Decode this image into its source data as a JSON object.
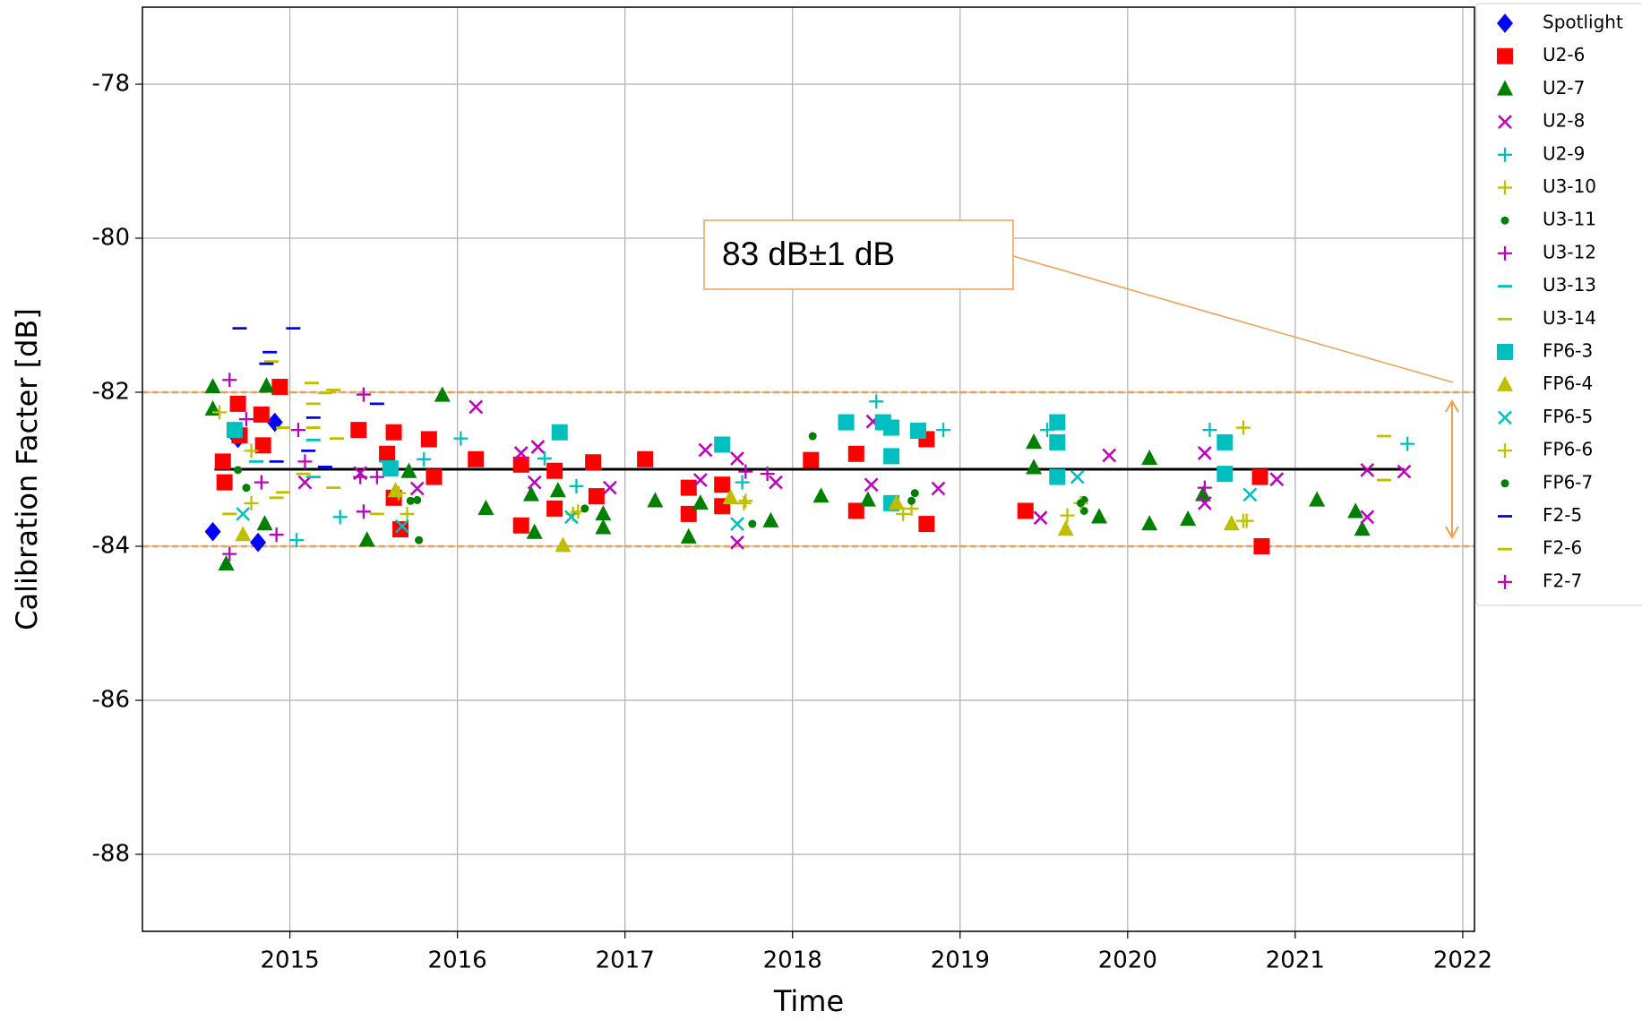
{
  "chart_data": {
    "type": "scatter",
    "xlabel": "Time",
    "ylabel": "Calibration Facter [dB]",
    "xlim": [
      2014.12,
      2022.07
    ],
    "xticks": [
      2015,
      2016,
      2017,
      2018,
      2019,
      2020,
      2021,
      2022
    ],
    "ylim": [
      -89,
      -77
    ],
    "yticks": [
      -88,
      -86,
      -84,
      -82,
      -80,
      -78
    ],
    "grid": true,
    "legend": "outside right",
    "reference_line": {
      "y": -83,
      "x": [
        2014.55,
        2021.65
      ],
      "color": "#000000"
    },
    "band": {
      "y": [
        -84,
        -82
      ],
      "color": "#f0a050"
    },
    "annotation": {
      "text": "83 dB±1 dB",
      "color": "#f0a050"
    },
    "series": [
      {
        "name": "Spotlight",
        "color": "#0000ff",
        "marker": "diamond",
        "x": [
          2014.54,
          2014.81,
          2014.91,
          2014.69
        ],
        "values": [
          -83.81,
          -83.95,
          -82.39,
          -82.6
        ]
      },
      {
        "name": "U2-6",
        "color": "#ff0000",
        "marker": "square",
        "x": [
          2014.6,
          2014.61,
          2014.69,
          2014.7,
          2014.83,
          2014.94,
          2014.84,
          2015.41,
          2015.62,
          2015.58,
          2015.66,
          2015.83,
          2015.86,
          2016.11,
          2016.38,
          2016.38,
          2016.58,
          2016.58,
          2016.81,
          2016.83,
          2017.12,
          2017.38,
          2017.38,
          2017.58,
          2017.58,
          2018.11,
          2018.38,
          2018.38,
          2018.8,
          2018.8,
          2019.39,
          2020.79,
          2020.8,
          2015.62
        ],
        "values": [
          -82.9,
          -83.17,
          -82.15,
          -82.56,
          -82.29,
          -81.93,
          -82.69,
          -82.49,
          -82.52,
          -82.8,
          -83.78,
          -82.61,
          -83.1,
          -82.87,
          -82.94,
          -83.73,
          -83.02,
          -83.51,
          -82.91,
          -83.35,
          -82.87,
          -83.24,
          -83.58,
          -83.2,
          -83.48,
          -82.88,
          -82.8,
          -83.54,
          -83.71,
          -82.61,
          -83.54,
          -83.1,
          -84.0,
          -83.37
        ]
      },
      {
        "name": "U2-7",
        "color": "#008000",
        "marker": "triangle",
        "x": [
          2014.54,
          2014.54,
          2014.62,
          2014.86,
          2014.85,
          2015.46,
          2015.71,
          2015.91,
          2016.17,
          2016.44,
          2016.46,
          2016.6,
          2016.87,
          2016.87,
          2017.18,
          2017.38,
          2017.45,
          2017.87,
          2018.17,
          2018.45,
          2019.44,
          2019.44,
          2019.83,
          2020.13,
          2020.13,
          2020.36,
          2020.45,
          2021.13,
          2021.36,
          2021.4
        ],
        "values": [
          -81.93,
          -82.22,
          -84.23,
          -81.92,
          -83.71,
          -83.92,
          -83.03,
          -82.04,
          -83.51,
          -83.33,
          -83.82,
          -83.28,
          -83.58,
          -83.76,
          -83.41,
          -83.88,
          -83.44,
          -83.67,
          -83.35,
          -83.4,
          -82.65,
          -82.98,
          -83.62,
          -82.86,
          -83.71,
          -83.65,
          -83.33,
          -83.4,
          -83.55,
          -83.78
        ]
      },
      {
        "name": "U2-8",
        "color": "#bf00bf",
        "marker": "x",
        "x": [
          2015.09,
          2015.42,
          2015.76,
          2016.11,
          2016.38,
          2016.48,
          2016.46,
          2016.91,
          2017.48,
          2017.45,
          2017.67,
          2017.67,
          2017.9,
          2018.48,
          2018.47,
          2018.87,
          2019.48,
          2019.89,
          2020.46,
          2020.46,
          2020.89,
          2021.43,
          2021.65,
          2021.43
        ],
        "values": [
          -83.17,
          -83.05,
          -83.25,
          -82.19,
          -82.79,
          -82.71,
          -83.17,
          -83.24,
          -82.75,
          -83.14,
          -82.86,
          -83.95,
          -83.17,
          -82.38,
          -83.2,
          -83.25,
          -83.63,
          -82.82,
          -82.79,
          -83.44,
          -83.13,
          -83.01,
          -83.03,
          -83.62
        ]
      },
      {
        "name": "U2-9",
        "color": "#00bfbf",
        "marker": "plus",
        "x": [
          2015.04,
          2015.3,
          2015.8,
          2016.02,
          2016.52,
          2016.71,
          2017.7,
          2018.5,
          2018.9,
          2019.52,
          2020.49,
          2021.67
        ],
        "values": [
          -83.92,
          -83.62,
          -82.87,
          -82.6,
          -82.86,
          -83.22,
          -83.17,
          -82.12,
          -82.49,
          -82.49,
          -82.49,
          -82.67
        ]
      },
      {
        "name": "U3-10",
        "color": "#bfbf00",
        "marker": "plus",
        "x": [
          2014.58,
          2014.77,
          2015.7,
          2016.69,
          2017.72,
          2018.66,
          2019.64,
          2020.69,
          2020.69
        ],
        "values": [
          -82.26,
          -82.76,
          -83.58,
          -83.58,
          -83.41,
          -83.58,
          -83.6,
          -82.46,
          -83.67
        ]
      },
      {
        "name": "U3-11",
        "color": "#008000",
        "marker": "dot",
        "x": [
          2014.69,
          2015.76,
          2015.77,
          2017.76,
          2018.12,
          2018.73,
          2019.74,
          2019.74
        ],
        "values": [
          -83.01,
          -83.4,
          -83.92,
          -83.71,
          -82.57,
          -83.31,
          -83.4,
          -83.54
        ]
      },
      {
        "name": "U3-12",
        "color": "#bf00bf",
        "marker": "plus",
        "x": [
          2014.64,
          2014.64,
          2014.92,
          2015.05,
          2015.44,
          2015.44,
          2015.52
        ],
        "values": [
          -81.84,
          -84.1,
          -83.85,
          -82.49,
          -82.03,
          -83.55,
          -83.1
        ]
      },
      {
        "name": "U3-13",
        "color": "#00bfbf",
        "marker": "hline",
        "x": [
          2015.14,
          2015.58,
          2015.14,
          2014.8
        ],
        "values": [
          -82.62,
          -82.9,
          -83.1,
          -82.9
        ]
      },
      {
        "name": "U3-14",
        "color": "#bfbf00",
        "marker": "hline",
        "x": [
          2015.13,
          2015.21,
          2015.26,
          2015.14,
          2015.14,
          2015.28,
          2015.08,
          2014.89,
          2021.53,
          2021.53,
          2014.96
        ],
        "values": [
          -81.88,
          -82.01,
          -81.97,
          -82.15,
          -82.46,
          -82.6,
          -83.06,
          -81.6,
          -82.57,
          -83.14,
          -83.3
        ]
      },
      {
        "name": "FP6-3",
        "color": "#00bfbf",
        "marker": "square",
        "x": [
          2014.67,
          2016.61,
          2017.58,
          2018.32,
          2018.54,
          2018.59,
          2018.59,
          2018.75,
          2018.59,
          2019.58,
          2019.58,
          2019.58,
          2020.58,
          2020.58,
          2015.6
        ],
        "values": [
          -82.49,
          -82.52,
          -82.68,
          -82.39,
          -82.39,
          -82.46,
          -82.83,
          -82.5,
          -83.44,
          -82.39,
          -82.65,
          -83.1,
          -82.65,
          -83.06,
          -82.99
        ]
      },
      {
        "name": "FP6-4",
        "color": "#bfbf00",
        "marker": "triangle",
        "x": [
          2014.72,
          2015.63,
          2016.63,
          2017.63,
          2019.63,
          2020.62,
          2018.62
        ],
        "values": [
          -83.85,
          -83.28,
          -83.99,
          -83.37,
          -83.78,
          -83.71,
          -83.44
        ]
      },
      {
        "name": "FP6-5",
        "color": "#00bfbf",
        "marker": "x",
        "x": [
          2015.67,
          2016.68,
          2017.67,
          2019.7,
          2020.73,
          2014.72
        ],
        "values": [
          -83.74,
          -83.62,
          -83.71,
          -83.1,
          -83.33,
          -83.58
        ]
      },
      {
        "name": "FP6-6",
        "color": "#bfbf00",
        "marker": "plus",
        "x": [
          2015.65,
          2016.72,
          2017.71,
          2018.71,
          2019.72,
          2020.71,
          2014.77
        ],
        "values": [
          -83.31,
          -83.55,
          -83.44,
          -83.51,
          -83.44,
          -83.67,
          -83.44
        ]
      },
      {
        "name": "FP6-7",
        "color": "#008000",
        "marker": "dot",
        "x": [
          2015.72,
          2016.76,
          2018.71,
          2019.72,
          2014.74
        ],
        "values": [
          -83.41,
          -83.51,
          -83.41,
          -83.44,
          -83.24
        ]
      },
      {
        "name": "F2-5",
        "color": "#0000ff",
        "marker": "hline",
        "x": [
          2014.7,
          2015.02,
          2014.88,
          2014.86,
          2015.11,
          2015.21,
          2015.52,
          2015.14,
          2014.92
        ],
        "values": [
          -81.17,
          -81.17,
          -81.48,
          -81.63,
          -82.76,
          -82.97,
          -82.15,
          -82.33,
          -82.9
        ]
      },
      {
        "name": "F2-6",
        "color": "#bfbf00",
        "marker": "hline",
        "x": [
          2014.64,
          2014.92,
          2015.26,
          2015.52,
          2014.96
        ],
        "values": [
          -83.58,
          -83.37,
          -83.24,
          -83.58,
          -82.46
        ]
      },
      {
        "name": "F2-7",
        "color": "#bf00bf",
        "marker": "plus",
        "x": [
          2014.74,
          2014.83,
          2015.09,
          2015.42,
          2017.72,
          2017.85,
          2020.46
        ],
        "values": [
          -82.35,
          -83.17,
          -82.9,
          -83.1,
          -83.03,
          -83.06,
          -83.24
        ]
      }
    ]
  }
}
